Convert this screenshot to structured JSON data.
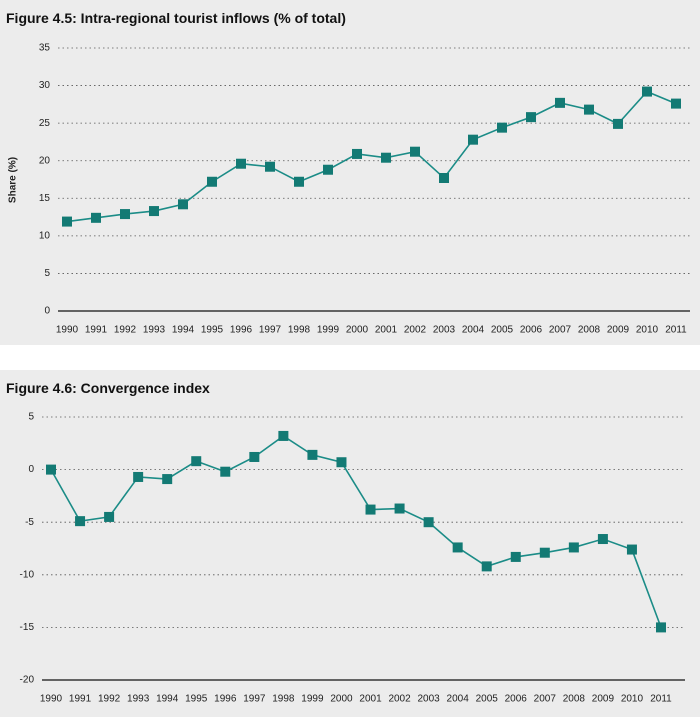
{
  "chart_data": [
    {
      "type": "line",
      "title": "Figure 4.5: Intra-regional tourist inflows (% of total)",
      "y_label": "Share (%)",
      "categories": [
        "1990",
        "1991",
        "1992",
        "1993",
        "1994",
        "1995",
        "1996",
        "1997",
        "1998",
        "1999",
        "2000",
        "2001",
        "2002",
        "2003",
        "2004",
        "2005",
        "2006",
        "2007",
        "2008",
        "2009",
        "2010",
        "2011"
      ],
      "values": [
        11.9,
        12.4,
        12.9,
        13.3,
        14.2,
        17.2,
        19.6,
        19.2,
        17.2,
        18.8,
        20.9,
        20.4,
        21.2,
        17.7,
        22.8,
        24.4,
        25.8,
        27.7,
        26.8,
        24.9,
        29.2,
        27.6
      ],
      "color": "#1b8c87",
      "marker_color": "#137a74",
      "ylim": [
        0,
        35
      ],
      "yticks": [
        0,
        5,
        10,
        15,
        20,
        25,
        30,
        35
      ],
      "grid": true
    },
    {
      "type": "line",
      "title": "Figure 4.6: Convergence index",
      "categories": [
        "1990",
        "1991",
        "1992",
        "1993",
        "1994",
        "1995",
        "1996",
        "1997",
        "1998",
        "1999",
        "2000",
        "2001",
        "2002",
        "2003",
        "2004",
        "2005",
        "2006",
        "2007",
        "2008",
        "2009",
        "2010",
        "2011"
      ],
      "values": [
        0,
        -4.9,
        -4.5,
        -0.7,
        -0.9,
        0.8,
        -0.2,
        1.2,
        3.2,
        1.4,
        0.7,
        -3.8,
        -3.7,
        -5.0,
        -7.4,
        -9.2,
        -8.3,
        -7.9,
        -7.4,
        -6.6,
        -7.6,
        -15.0
      ],
      "color": "#1b8c87",
      "marker_color": "#137a74",
      "ylim": [
        -20,
        5
      ],
      "yticks": [
        -20,
        -15,
        -10,
        -5,
        0,
        5
      ],
      "grid": true
    }
  ]
}
